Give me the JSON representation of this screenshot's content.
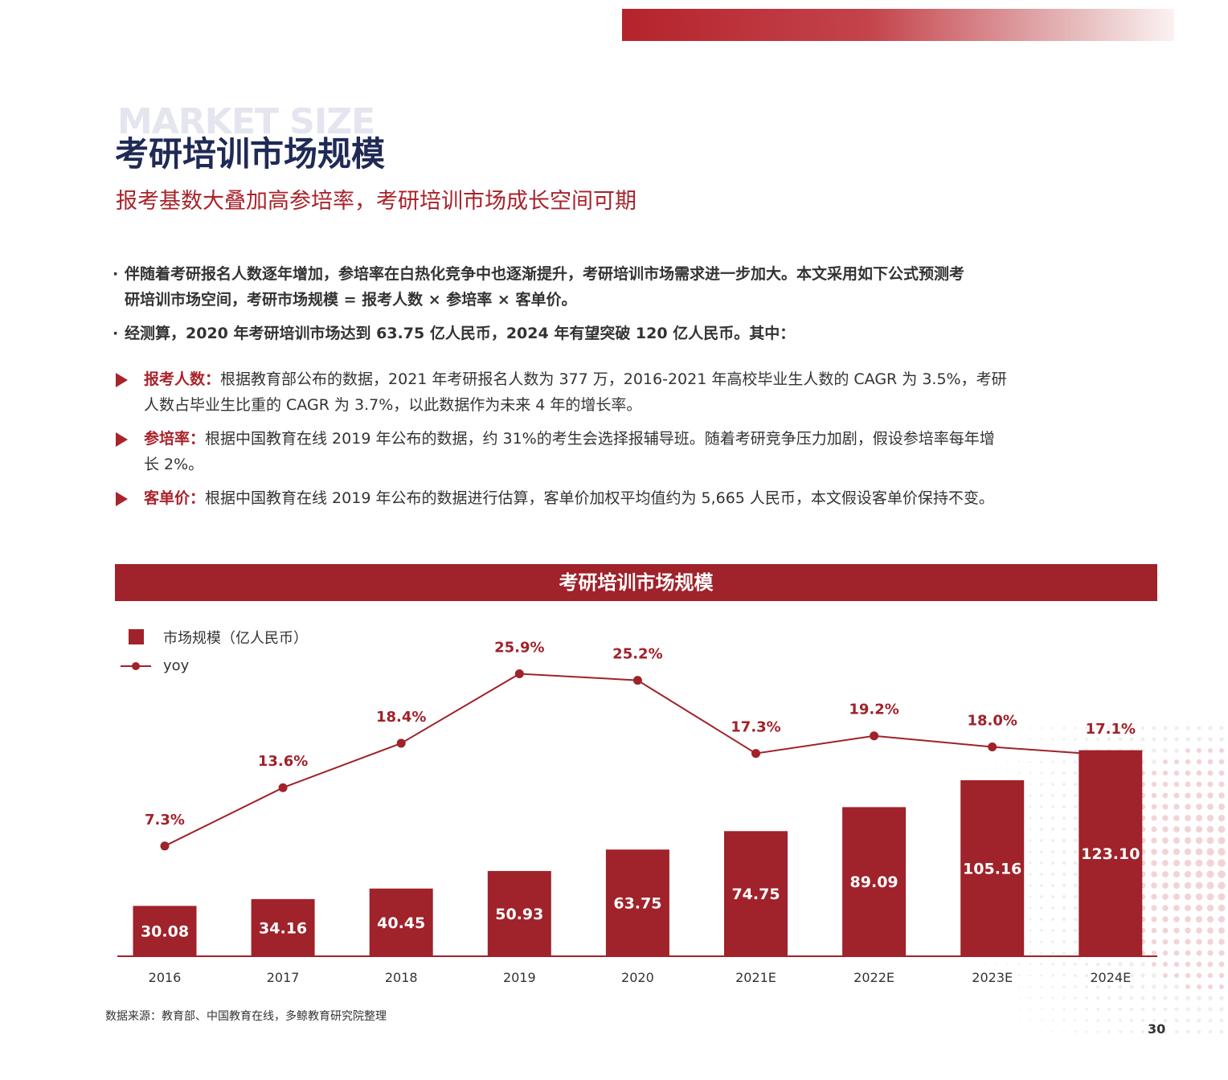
{
  "header": {
    "bg_word": "MARKET SIZE",
    "title": "考研培训市场规模",
    "subtitle": "报考基数大叠加高参培率，考研培训市场成长空间可期"
  },
  "bullets": [
    {
      "marker": "·",
      "line1": "伴随着考研报名人数逐年增加，参培率在白热化竞争中也逐渐提升，考研培训市场需求进一步加大。本文采用如下公式预测考",
      "line2": "研培训市场空间，考研市场规模 = 报考人数 × 参培率 × 客单价。"
    },
    {
      "marker": "·",
      "line1": "经测算，2020 年考研培训市场达到 63.75 亿人民币，2024 年有望突破 120 亿人民币。其中："
    }
  ],
  "items": [
    {
      "label": "报考人数：",
      "line1": "根据教育部公布的数据，2021 年考研报名人数为 377 万，2016-2021 年高校毕业生人数的 CAGR 为 3.5%，考研",
      "line2": "人数占毕业生比重的 CAGR 为 3.7%，以此数据作为未来 4 年的增长率。"
    },
    {
      "label": "参培率：",
      "line1": "根据中国教育在线 2019 年公布的数据，约 31%的考生会选择报辅导班。随着考研竞争压力加剧，假设参培率每年增",
      "line2": "长 2%。"
    },
    {
      "label": "客单价：",
      "line1": "根据中国教育在线 2019 年公布的数据进行估算，客单价加权平均值约为 5,665 人民币，本文假设客单价保持不变。"
    }
  ],
  "chart_header": "考研培训市场规模",
  "chart_data": {
    "type": "bar",
    "categories": [
      "2016",
      "2017",
      "2018",
      "2019",
      "2020",
      "2021E",
      "2022E",
      "2023E",
      "2024E"
    ],
    "series": [
      {
        "name": "市场规模（亿人民币）",
        "type": "bar",
        "values": [
          30.08,
          34.16,
          40.45,
          50.93,
          63.75,
          74.75,
          89.09,
          105.16,
          123.1
        ],
        "labels": [
          "30.08",
          "34.16",
          "40.45",
          "50.93",
          "63.75",
          "74.75",
          "89.09",
          "105.16",
          "123.10"
        ]
      },
      {
        "name": "yoy",
        "type": "line",
        "values": [
          7.3,
          13.6,
          18.4,
          25.9,
          25.2,
          17.3,
          19.2,
          18.0,
          17.1
        ],
        "labels": [
          "7.3%",
          "13.6%",
          "18.4%",
          "25.9%",
          "25.2%",
          "17.3%",
          "19.2%",
          "18.0%",
          "17.1%"
        ]
      }
    ],
    "legend_position": "top-left",
    "grid": false
  },
  "colors": {
    "accent": "#a0222a",
    "title": "#1f2a55"
  },
  "source": "数据来源：教育部、中国教育在线，多鲸教育研究院整理",
  "page_number": "30"
}
